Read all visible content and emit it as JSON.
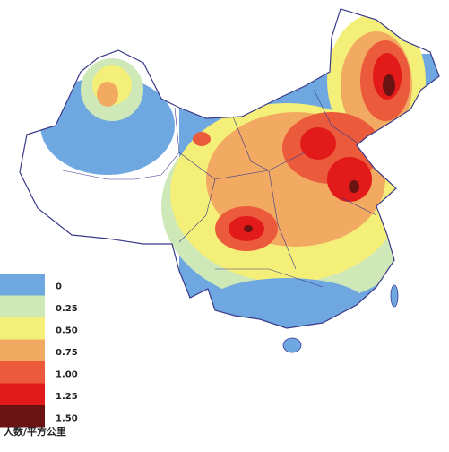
{
  "legend": {
    "title": "人数/平方公里",
    "items": [
      {
        "label": "0",
        "color": "#6fa8e0"
      },
      {
        "label": "0.25",
        "color": "#cfe8b8"
      },
      {
        "label": "0.50",
        "color": "#f4ef78"
      },
      {
        "label": "0.75",
        "color": "#f2aa62"
      },
      {
        "label": "1.00",
        "color": "#ec5a3c"
      },
      {
        "label": "1.25",
        "color": "#e31a1a"
      },
      {
        "label": "1.50",
        "color": "#6b1212"
      }
    ]
  }
}
